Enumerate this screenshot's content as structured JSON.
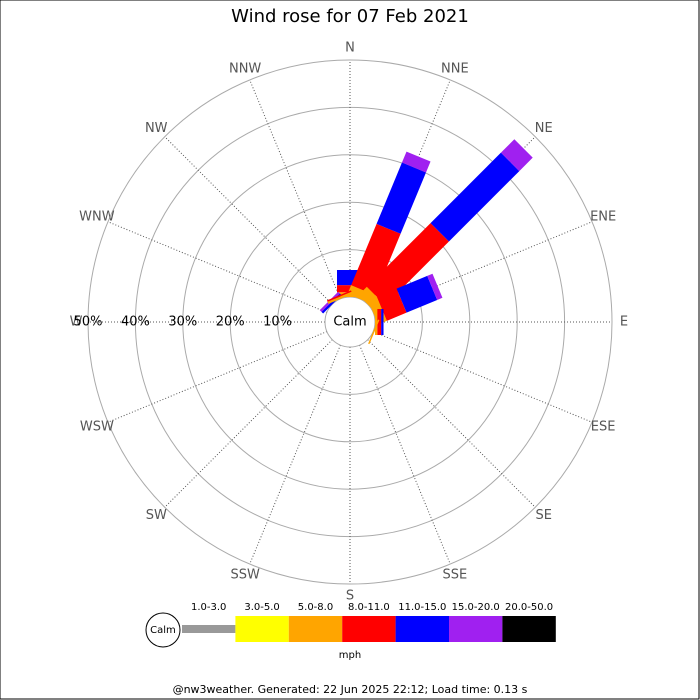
{
  "chart_data": {
    "type": "windrose",
    "title": "Wind rose for 07 Feb 2021",
    "categories": [
      "N",
      "NNE",
      "NE",
      "ENE",
      "E",
      "ESE",
      "SE",
      "SSE",
      "S",
      "SSW",
      "SW",
      "WSW",
      "W",
      "WNW",
      "NW",
      "NNW"
    ],
    "calm_label": "Calm",
    "unit": "mph",
    "rlim": [
      0,
      50
    ],
    "rticks": [
      {
        "value": 10,
        "label": "10%"
      },
      {
        "value": 20,
        "label": "20%"
      },
      {
        "value": 30,
        "label": "30%"
      },
      {
        "value": 40,
        "label": "40%"
      },
      {
        "value": 50,
        "label": "50%"
      }
    ],
    "series": [
      {
        "name": "1.0-3.0",
        "color": "#999999",
        "values": [
          0,
          0,
          0,
          0,
          0,
          0,
          0,
          0,
          0,
          0,
          0,
          0,
          0,
          0,
          0,
          0
        ]
      },
      {
        "name": "3.0-5.0",
        "color": "#ffff00",
        "values": [
          0,
          0,
          0,
          0,
          0,
          0,
          0,
          0,
          0,
          0,
          0,
          0,
          0,
          0,
          0,
          0
        ]
      },
      {
        "name": "5.0-8.0",
        "color": "#ffa500",
        "values": [
          1,
          2,
          2.5,
          2,
          0.5,
          0.3,
          0,
          0,
          0,
          0,
          0,
          0,
          0,
          0,
          0,
          0.5
        ]
      },
      {
        "name": "8.0-11.0",
        "color": "#ff0000",
        "values": [
          1.5,
          14,
          19,
          4.5,
          0.8,
          0,
          0,
          0,
          0,
          0,
          0,
          0,
          0,
          0,
          0,
          0.3
        ]
      },
      {
        "name": "11.0-15.0",
        "color": "#0000ff",
        "values": [
          3.2,
          14,
          21,
          7,
          0.5,
          0,
          0,
          0,
          0,
          0,
          0,
          0,
          0,
          0,
          0.5,
          0
        ]
      },
      {
        "name": "15.0-20.0",
        "color": "#a020f0",
        "values": [
          0,
          2.5,
          4,
          1.2,
          0,
          0,
          0,
          0,
          0,
          0,
          0,
          0,
          0,
          0,
          0.5,
          0
        ]
      },
      {
        "name": "20.0-50.0",
        "color": "#000000",
        "values": [
          0,
          0,
          0,
          0,
          0,
          0,
          0,
          0,
          0,
          0,
          0,
          0,
          0,
          0,
          0,
          0
        ]
      }
    ],
    "footer": "@nw3weather. Generated: 22 Jun 2025 22:12; Load time: 0.13 s"
  }
}
